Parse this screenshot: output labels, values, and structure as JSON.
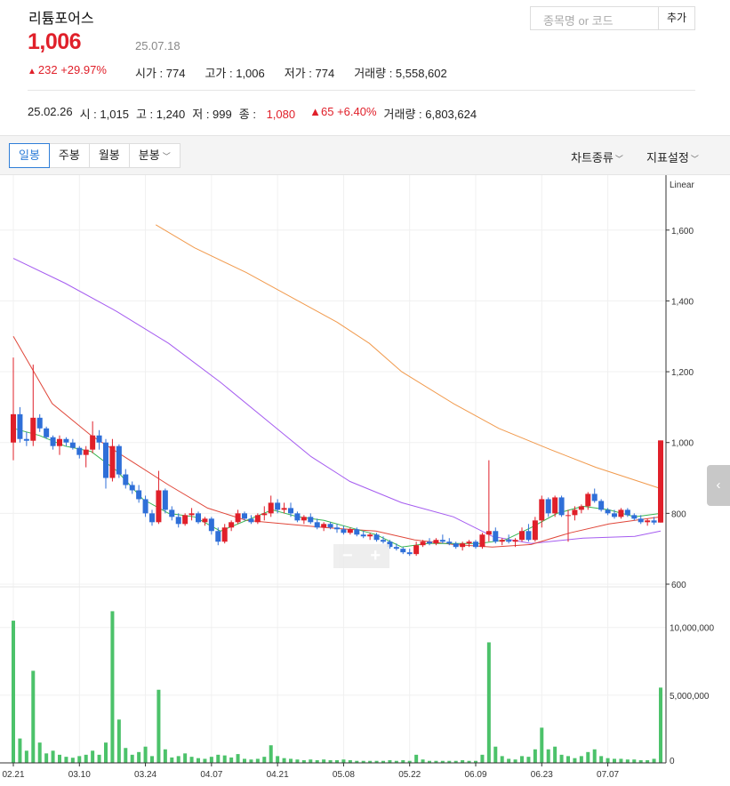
{
  "stock": {
    "name": "리튬포어스",
    "price": "1,006",
    "date": "25.07.18",
    "change_icon": "up-arrow-icon",
    "change_text": "232 +29.97%",
    "open": "시가 : 774",
    "high": "고가 : 1,006",
    "low": "저가 : 774",
    "volume": "거래량 : 5,558,602"
  },
  "search": {
    "placeholder": "종목명 or 코드",
    "add_label": "추가"
  },
  "hover_info": {
    "date": "25.02.26",
    "open": "시 : 1,015",
    "high": "고 : 1,240",
    "low": "저 : 999",
    "close_label": "종 :",
    "close_value": "1,080",
    "change": "▲65 +6.40%",
    "volume": "거래량 : 6,803,624"
  },
  "toolbar": {
    "tabs": [
      {
        "label": "일봉",
        "active": true
      },
      {
        "label": "주봉",
        "active": false
      },
      {
        "label": "월봉",
        "active": false
      },
      {
        "label": "분봉",
        "active": false,
        "dropdown": true
      }
    ],
    "chart_type_label": "차트종류",
    "indicator_label": "지표설정"
  },
  "chart_controls": {
    "zoom_out": "−",
    "zoom_in": "+",
    "collapse_icon": "chevron-left-icon"
  },
  "colors": {
    "up": "#e0202a",
    "down": "#2f6fd8",
    "volume": "#4cc26a",
    "ma5": "#38b550",
    "ma20": "#e0473a",
    "ma60": "#a55cf0",
    "ma120": "#f19a4d"
  },
  "chart_data": {
    "type": "candlestick",
    "price_scale_label": "Linear",
    "price_ticks": [
      "1,600",
      "1,400",
      "1,200",
      "1,000",
      "800",
      "600"
    ],
    "volume_ticks": [
      "10,000,000",
      "5,000,000",
      "0"
    ],
    "x_tick_labels": [
      "02.21",
      "03.10",
      "03.24",
      "04.07",
      "04.21",
      "05.08",
      "05.22",
      "06.09",
      "06.23",
      "07.07"
    ],
    "x_tick_index": [
      0,
      10,
      20,
      30,
      40,
      50,
      60,
      70,
      80,
      90
    ],
    "ylim": [
      600,
      1730
    ],
    "volume_ylim": [
      0,
      13000000
    ],
    "candles": [
      {
        "o": 1000,
        "h": 1240,
        "l": 950,
        "c": 1080,
        "v": 10500000
      },
      {
        "o": 1080,
        "h": 1100,
        "l": 1000,
        "c": 1010,
        "v": 1800000
      },
      {
        "o": 1010,
        "h": 1030,
        "l": 990,
        "c": 1005,
        "v": 900000
      },
      {
        "o": 1005,
        "h": 1220,
        "l": 990,
        "c": 1070,
        "v": 6800000
      },
      {
        "o": 1070,
        "h": 1080,
        "l": 1030,
        "c": 1040,
        "v": 1500000
      },
      {
        "o": 1040,
        "h": 1045,
        "l": 1010,
        "c": 1015,
        "v": 700000
      },
      {
        "o": 1015,
        "h": 1020,
        "l": 980,
        "c": 990,
        "v": 900000
      },
      {
        "o": 990,
        "h": 1020,
        "l": 965,
        "c": 1010,
        "v": 600000
      },
      {
        "o": 1010,
        "h": 1015,
        "l": 990,
        "c": 1000,
        "v": 450000
      },
      {
        "o": 1000,
        "h": 1010,
        "l": 980,
        "c": 985,
        "v": 380000
      },
      {
        "o": 985,
        "h": 990,
        "l": 955,
        "c": 965,
        "v": 500000
      },
      {
        "o": 965,
        "h": 990,
        "l": 930,
        "c": 980,
        "v": 600000
      },
      {
        "o": 980,
        "h": 1060,
        "l": 970,
        "c": 1020,
        "v": 900000
      },
      {
        "o": 1020,
        "h": 1035,
        "l": 980,
        "c": 1000,
        "v": 600000
      },
      {
        "o": 1000,
        "h": 1010,
        "l": 870,
        "c": 900,
        "v": 1500000
      },
      {
        "o": 900,
        "h": 1010,
        "l": 890,
        "c": 990,
        "v": 11200000
      },
      {
        "o": 990,
        "h": 995,
        "l": 900,
        "c": 910,
        "v": 3200000
      },
      {
        "o": 910,
        "h": 925,
        "l": 870,
        "c": 880,
        "v": 1100000
      },
      {
        "o": 880,
        "h": 890,
        "l": 855,
        "c": 865,
        "v": 600000
      },
      {
        "o": 865,
        "h": 880,
        "l": 830,
        "c": 840,
        "v": 800000
      },
      {
        "o": 840,
        "h": 850,
        "l": 790,
        "c": 800,
        "v": 1200000
      },
      {
        "o": 800,
        "h": 810,
        "l": 765,
        "c": 775,
        "v": 500000
      },
      {
        "o": 775,
        "h": 920,
        "l": 770,
        "c": 865,
        "v": 5400000
      },
      {
        "o": 865,
        "h": 870,
        "l": 800,
        "c": 810,
        "v": 1000000
      },
      {
        "o": 810,
        "h": 820,
        "l": 780,
        "c": 790,
        "v": 400000
      },
      {
        "o": 790,
        "h": 800,
        "l": 760,
        "c": 770,
        "v": 500000
      },
      {
        "o": 770,
        "h": 800,
        "l": 765,
        "c": 795,
        "v": 700000
      },
      {
        "o": 795,
        "h": 815,
        "l": 780,
        "c": 800,
        "v": 450000
      },
      {
        "o": 800,
        "h": 805,
        "l": 770,
        "c": 775,
        "v": 350000
      },
      {
        "o": 775,
        "h": 790,
        "l": 765,
        "c": 785,
        "v": 300000
      },
      {
        "o": 785,
        "h": 790,
        "l": 740,
        "c": 750,
        "v": 450000
      },
      {
        "o": 750,
        "h": 760,
        "l": 710,
        "c": 720,
        "v": 600000
      },
      {
        "o": 720,
        "h": 770,
        "l": 715,
        "c": 760,
        "v": 550000
      },
      {
        "o": 760,
        "h": 780,
        "l": 750,
        "c": 775,
        "v": 400000
      },
      {
        "o": 775,
        "h": 810,
        "l": 770,
        "c": 800,
        "v": 650000
      },
      {
        "o": 800,
        "h": 805,
        "l": 780,
        "c": 785,
        "v": 300000
      },
      {
        "o": 785,
        "h": 795,
        "l": 770,
        "c": 775,
        "v": 250000
      },
      {
        "o": 775,
        "h": 800,
        "l": 770,
        "c": 795,
        "v": 300000
      },
      {
        "o": 795,
        "h": 820,
        "l": 780,
        "c": 800,
        "v": 450000
      },
      {
        "o": 800,
        "h": 850,
        "l": 790,
        "c": 830,
        "v": 1300000
      },
      {
        "o": 830,
        "h": 840,
        "l": 800,
        "c": 810,
        "v": 500000
      },
      {
        "o": 810,
        "h": 830,
        "l": 800,
        "c": 815,
        "v": 350000
      },
      {
        "o": 815,
        "h": 830,
        "l": 790,
        "c": 800,
        "v": 300000
      },
      {
        "o": 800,
        "h": 805,
        "l": 775,
        "c": 780,
        "v": 250000
      },
      {
        "o": 780,
        "h": 795,
        "l": 770,
        "c": 790,
        "v": 200000
      },
      {
        "o": 790,
        "h": 800,
        "l": 770,
        "c": 775,
        "v": 250000
      },
      {
        "o": 775,
        "h": 785,
        "l": 755,
        "c": 760,
        "v": 200000
      },
      {
        "o": 760,
        "h": 775,
        "l": 750,
        "c": 770,
        "v": 250000
      },
      {
        "o": 770,
        "h": 775,
        "l": 755,
        "c": 760,
        "v": 200000
      },
      {
        "o": 760,
        "h": 770,
        "l": 745,
        "c": 755,
        "v": 200000
      },
      {
        "o": 755,
        "h": 765,
        "l": 740,
        "c": 745,
        "v": 250000
      },
      {
        "o": 745,
        "h": 760,
        "l": 740,
        "c": 755,
        "v": 200000
      },
      {
        "o": 755,
        "h": 760,
        "l": 735,
        "c": 740,
        "v": 150000
      },
      {
        "o": 740,
        "h": 750,
        "l": 730,
        "c": 735,
        "v": 150000
      },
      {
        "o": 735,
        "h": 745,
        "l": 725,
        "c": 740,
        "v": 150000
      },
      {
        "o": 740,
        "h": 745,
        "l": 720,
        "c": 725,
        "v": 150000
      },
      {
        "o": 725,
        "h": 735,
        "l": 715,
        "c": 720,
        "v": 150000
      },
      {
        "o": 720,
        "h": 725,
        "l": 700,
        "c": 705,
        "v": 200000
      },
      {
        "o": 705,
        "h": 715,
        "l": 695,
        "c": 700,
        "v": 150000
      },
      {
        "o": 700,
        "h": 705,
        "l": 685,
        "c": 690,
        "v": 200000
      },
      {
        "o": 690,
        "h": 700,
        "l": 680,
        "c": 685,
        "v": 150000
      },
      {
        "o": 685,
        "h": 720,
        "l": 680,
        "c": 710,
        "v": 600000
      },
      {
        "o": 710,
        "h": 725,
        "l": 705,
        "c": 720,
        "v": 250000
      },
      {
        "o": 720,
        "h": 730,
        "l": 710,
        "c": 715,
        "v": 150000
      },
      {
        "o": 715,
        "h": 730,
        "l": 710,
        "c": 725,
        "v": 150000
      },
      {
        "o": 725,
        "h": 740,
        "l": 715,
        "c": 720,
        "v": 150000
      },
      {
        "o": 720,
        "h": 730,
        "l": 710,
        "c": 715,
        "v": 150000
      },
      {
        "o": 715,
        "h": 720,
        "l": 700,
        "c": 705,
        "v": 150000
      },
      {
        "o": 705,
        "h": 720,
        "l": 695,
        "c": 715,
        "v": 200000
      },
      {
        "o": 715,
        "h": 725,
        "l": 705,
        "c": 720,
        "v": 150000
      },
      {
        "o": 720,
        "h": 725,
        "l": 700,
        "c": 705,
        "v": 150000
      },
      {
        "o": 705,
        "h": 745,
        "l": 700,
        "c": 740,
        "v": 600000
      },
      {
        "o": 740,
        "h": 950,
        "l": 720,
        "c": 750,
        "v": 8900000
      },
      {
        "o": 750,
        "h": 760,
        "l": 715,
        "c": 720,
        "v": 1200000
      },
      {
        "o": 720,
        "h": 730,
        "l": 710,
        "c": 725,
        "v": 500000
      },
      {
        "o": 725,
        "h": 740,
        "l": 715,
        "c": 720,
        "v": 300000
      },
      {
        "o": 720,
        "h": 730,
        "l": 705,
        "c": 725,
        "v": 250000
      },
      {
        "o": 725,
        "h": 760,
        "l": 720,
        "c": 750,
        "v": 500000
      },
      {
        "o": 750,
        "h": 770,
        "l": 720,
        "c": 725,
        "v": 450000
      },
      {
        "o": 725,
        "h": 790,
        "l": 720,
        "c": 780,
        "v": 1000000
      },
      {
        "o": 780,
        "h": 850,
        "l": 760,
        "c": 840,
        "v": 2600000
      },
      {
        "o": 840,
        "h": 845,
        "l": 790,
        "c": 800,
        "v": 1000000
      },
      {
        "o": 800,
        "h": 850,
        "l": 790,
        "c": 845,
        "v": 1200000
      },
      {
        "o": 845,
        "h": 850,
        "l": 790,
        "c": 795,
        "v": 600000
      },
      {
        "o": 795,
        "h": 810,
        "l": 720,
        "c": 795,
        "v": 500000
      },
      {
        "o": 795,
        "h": 820,
        "l": 780,
        "c": 810,
        "v": 350000
      },
      {
        "o": 810,
        "h": 825,
        "l": 800,
        "c": 820,
        "v": 500000
      },
      {
        "o": 820,
        "h": 860,
        "l": 810,
        "c": 855,
        "v": 800000
      },
      {
        "o": 855,
        "h": 870,
        "l": 830,
        "c": 835,
        "v": 1000000
      },
      {
        "o": 835,
        "h": 840,
        "l": 805,
        "c": 810,
        "v": 500000
      },
      {
        "o": 810,
        "h": 815,
        "l": 795,
        "c": 800,
        "v": 350000
      },
      {
        "o": 800,
        "h": 810,
        "l": 785,
        "c": 790,
        "v": 300000
      },
      {
        "o": 790,
        "h": 815,
        "l": 785,
        "c": 810,
        "v": 300000
      },
      {
        "o": 810,
        "h": 815,
        "l": 790,
        "c": 795,
        "v": 250000
      },
      {
        "o": 795,
        "h": 800,
        "l": 780,
        "c": 785,
        "v": 250000
      },
      {
        "o": 785,
        "h": 795,
        "l": 770,
        "c": 775,
        "v": 200000
      },
      {
        "o": 775,
        "h": 785,
        "l": 765,
        "c": 780,
        "v": 200000
      },
      {
        "o": 780,
        "h": 790,
        "l": 768,
        "c": 774,
        "v": 300000
      },
      {
        "o": 774,
        "h": 1006,
        "l": 774,
        "c": 1006,
        "v": 5558602
      }
    ],
    "ma_lines": [
      {
        "name": "MA120",
        "color": "#f19a4d",
        "points": [
          [
            22,
            1615
          ],
          [
            28,
            1550
          ],
          [
            36,
            1480
          ],
          [
            44,
            1400
          ],
          [
            50,
            1340
          ],
          [
            55,
            1280
          ],
          [
            60,
            1200
          ],
          [
            68,
            1110
          ],
          [
            75,
            1040
          ],
          [
            83,
            980
          ],
          [
            90,
            930
          ],
          [
            100,
            870
          ]
        ]
      },
      {
        "name": "MA60",
        "color": "#a55cf0",
        "points": [
          [
            0,
            1520
          ],
          [
            8,
            1450
          ],
          [
            16,
            1370
          ],
          [
            24,
            1280
          ],
          [
            32,
            1170
          ],
          [
            40,
            1050
          ],
          [
            46,
            960
          ],
          [
            52,
            890
          ],
          [
            60,
            830
          ],
          [
            68,
            790
          ],
          [
            74,
            735
          ],
          [
            80,
            715
          ],
          [
            88,
            730
          ],
          [
            96,
            735
          ],
          [
            100,
            750
          ]
        ]
      },
      {
        "name": "MA20",
        "color": "#e0473a",
        "points": [
          [
            0,
            1300
          ],
          [
            6,
            1110
          ],
          [
            12,
            1020
          ],
          [
            18,
            950
          ],
          [
            24,
            880
          ],
          [
            30,
            815
          ],
          [
            36,
            780
          ],
          [
            42,
            770
          ],
          [
            48,
            760
          ],
          [
            56,
            750
          ],
          [
            62,
            725
          ],
          [
            68,
            712
          ],
          [
            74,
            705
          ],
          [
            80,
            712
          ],
          [
            86,
            745
          ],
          [
            92,
            770
          ],
          [
            100,
            790
          ]
        ]
      },
      {
        "name": "MA5",
        "color": "#38b550",
        "points": [
          [
            0,
            1040
          ],
          [
            4,
            1020
          ],
          [
            8,
            990
          ],
          [
            12,
            975
          ],
          [
            16,
            920
          ],
          [
            20,
            840
          ],
          [
            24,
            800
          ],
          [
            28,
            790
          ],
          [
            32,
            750
          ],
          [
            36,
            780
          ],
          [
            40,
            810
          ],
          [
            44,
            790
          ],
          [
            48,
            780
          ],
          [
            52,
            760
          ],
          [
            56,
            740
          ],
          [
            60,
            705
          ],
          [
            64,
            715
          ],
          [
            68,
            715
          ],
          [
            72,
            715
          ],
          [
            76,
            725
          ],
          [
            80,
            760
          ],
          [
            84,
            800
          ],
          [
            88,
            820
          ],
          [
            92,
            810
          ],
          [
            96,
            790
          ],
          [
            100,
            800
          ]
        ]
      }
    ]
  }
}
